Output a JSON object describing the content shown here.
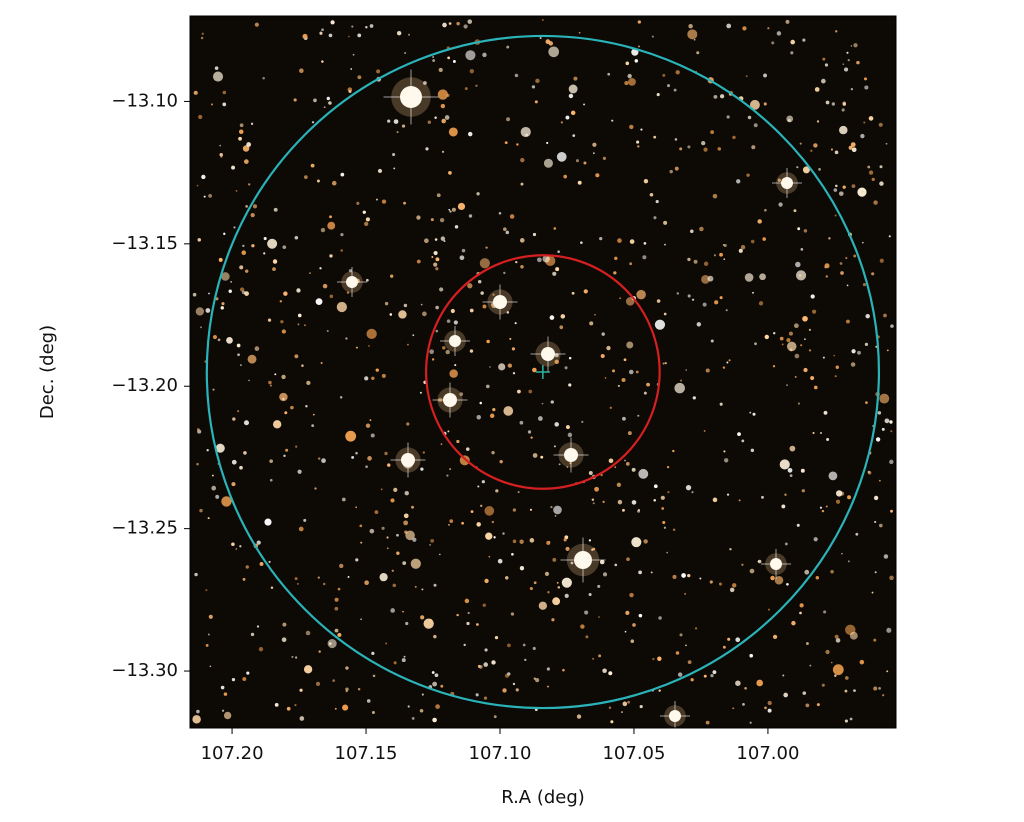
{
  "chart_data": {
    "type": "sky",
    "xlabel": "R.A (deg)",
    "ylabel": "Dec. (deg)",
    "xlim": [
      107.2157,
      106.9522
    ],
    "ylim": [
      -13.32,
      -13.07
    ],
    "xticks": [
      {
        "value": 107.2,
        "label": "107.20"
      },
      {
        "value": 107.15,
        "label": "107.15"
      },
      {
        "value": 107.1,
        "label": "107.10"
      },
      {
        "value": 107.05,
        "label": "107.05"
      },
      {
        "value": 107.0,
        "label": "107.00"
      }
    ],
    "yticks": [
      {
        "value": -13.1,
        "label": "−13.10"
      },
      {
        "value": -13.15,
        "label": "−13.15"
      },
      {
        "value": -13.2,
        "label": "−13.20"
      },
      {
        "value": -13.25,
        "label": "−13.25"
      },
      {
        "value": -13.3,
        "label": "−13.30"
      }
    ],
    "center": {
      "ra": 107.084,
      "dec": -13.195,
      "color": "#2bb5a0"
    },
    "circles": [
      {
        "ra": 107.084,
        "dec": -13.195,
        "radius": 0.041,
        "color": "#d42020"
      },
      {
        "ra": 107.084,
        "dec": -13.195,
        "radius": 0.118,
        "color": "#2ab3b8"
      }
    ]
  }
}
